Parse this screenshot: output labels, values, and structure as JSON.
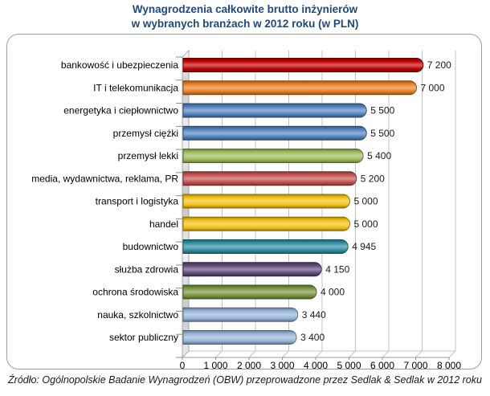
{
  "title": {
    "line1": "Wynagrodzenia całkowite brutto inżynierów",
    "line2": "w wybranych branżach  w 2012 roku (w PLN)"
  },
  "source": {
    "text": "Źródło: Ogólnopolskie Badanie Wynagrodzeń (OBW) przeprowadzone przez Sedlak & Sedlak w 2012 roku"
  },
  "colors": {
    "title": "#1F497D",
    "gridline": "#c3c3c3",
    "axis": "#9a9a9a",
    "tick": "#8c8c8c",
    "frame_border": "#9d9d9d",
    "label_text": "#000000",
    "value_text": "#1a1a1a"
  },
  "chart_data": {
    "type": "bar",
    "orientation": "horizontal",
    "title": "Wynagrodzenia całkowite brutto inżynierów w wybranych branżach w 2012 roku (w PLN)",
    "categories": [
      "bankowość i ubezpieczenia",
      "IT i telekomunikacja",
      "energetyka i ciepłownictwo",
      "przemysł ciężki",
      "przemysł lekki",
      "media, wydawnictwa,  reklama, PR",
      "transport i logistyka",
      "handel",
      "budownictwo",
      "służba zdrowia",
      "ochrona środowiska",
      "nauka, szkolnictwo",
      "sektor publiczny"
    ],
    "values": [
      7200,
      7000,
      5500,
      5500,
      5400,
      5200,
      5000,
      5000,
      4945,
      4150,
      4000,
      3440,
      3400
    ],
    "value_labels": [
      "7 200",
      "7 000",
      "5 500",
      "5 500",
      "5 400",
      "5 200",
      "5 000",
      "5 000",
      "4 945",
      "4 150",
      "4 000",
      "3 440",
      "3 400"
    ],
    "bar_colors": [
      "#C00000",
      "#E87E22",
      "#4F81BD",
      "#4F81BD",
      "#9BBB59",
      "#C0504D",
      "#F2C011",
      "#F2C011",
      "#2E8CA3",
      "#5F497A",
      "#77933C",
      "#95B3D7",
      "#95B3D7"
    ],
    "x_tick_labels": [
      "0",
      "1 000",
      "2 000",
      "3 000",
      "4 000",
      "5 000",
      "6 000",
      "7 000",
      "8 000"
    ],
    "xlim": [
      0,
      8000
    ],
    "x_tick_step": 1000,
    "grid": true,
    "legend": false,
    "xlabel": "",
    "ylabel": ""
  }
}
